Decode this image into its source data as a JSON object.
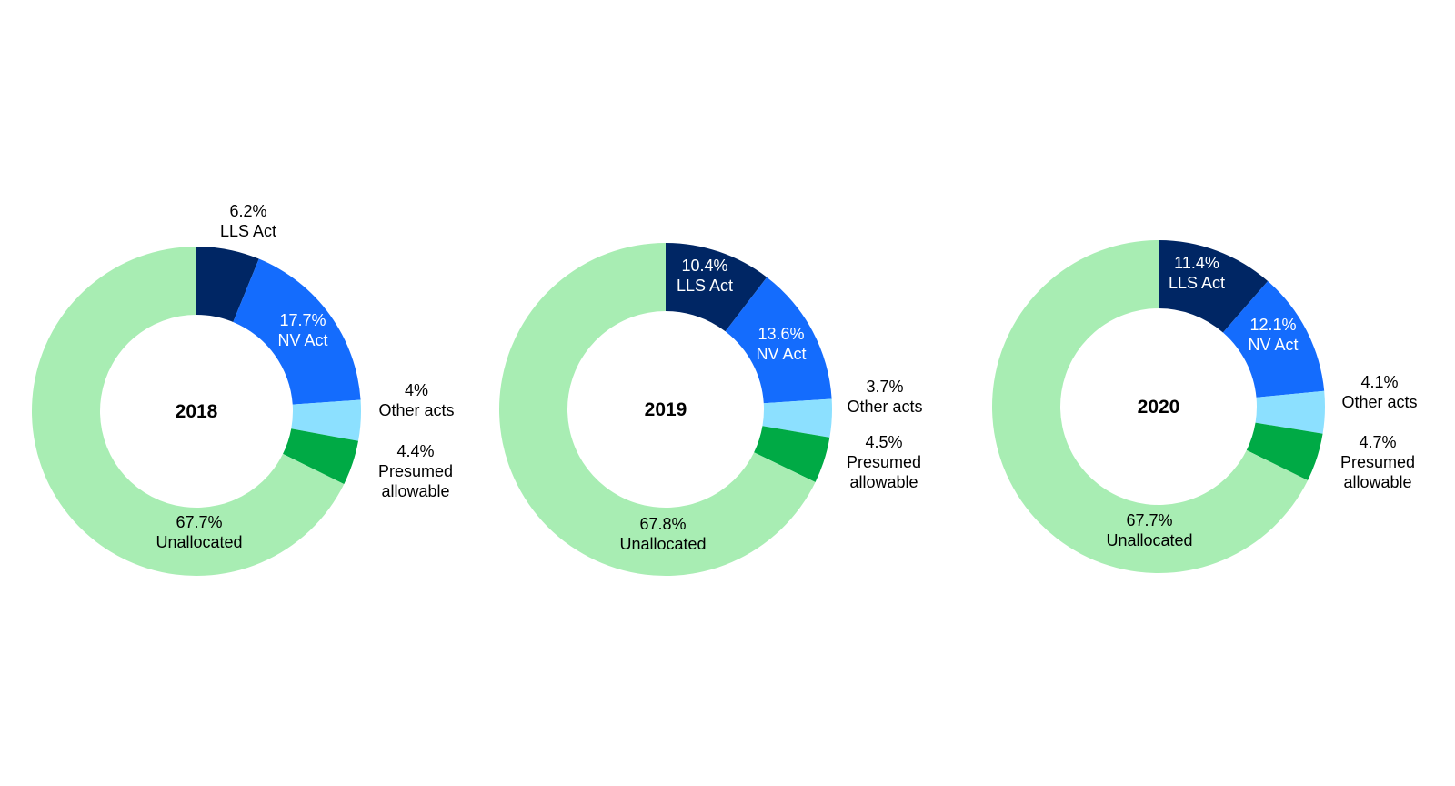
{
  "chart_data": [
    {
      "type": "pie",
      "center_label": "2018",
      "slices": [
        {
          "pct": "6.2%",
          "value": 6.2,
          "label": "LLS Act",
          "color": "#002664"
        },
        {
          "pct": "17.7%",
          "value": 17.7,
          "label": "NV Act",
          "color": "#146cfd"
        },
        {
          "pct": "4%",
          "value": 4.0,
          "label": "Other acts",
          "color": "#8ce0ff"
        },
        {
          "pct": "4.4%",
          "value": 4.4,
          "label": [
            "Presumed",
            "allowable"
          ],
          "color": "#00aa45"
        },
        {
          "pct": "67.7%",
          "value": 67.7,
          "label": "Unallocated",
          "color": "#a8edb3"
        }
      ]
    },
    {
      "type": "pie",
      "center_label": "2019",
      "slices": [
        {
          "pct": "10.4%",
          "value": 10.4,
          "label": "LLS Act",
          "color": "#002664"
        },
        {
          "pct": "13.6%",
          "value": 13.6,
          "label": "NV Act",
          "color": "#146cfd"
        },
        {
          "pct": "3.7%",
          "value": 3.7,
          "label": "Other acts",
          "color": "#8ce0ff"
        },
        {
          "pct": "4.5%",
          "value": 4.5,
          "label": [
            "Presumed",
            "allowable"
          ],
          "color": "#00aa45"
        },
        {
          "pct": "67.8%",
          "value": 67.8,
          "label": "Unallocated",
          "color": "#a8edb3"
        }
      ]
    },
    {
      "type": "pie",
      "center_label": "2020",
      "slices": [
        {
          "pct": "11.4%",
          "value": 11.4,
          "label": "LLS Act",
          "color": "#002664"
        },
        {
          "pct": "12.1%",
          "value": 12.1,
          "label": "NV Act",
          "color": "#146cfd"
        },
        {
          "pct": "4.1%",
          "value": 4.1,
          "label": "Other acts",
          "color": "#8ce0ff"
        },
        {
          "pct": "4.7%",
          "value": 4.7,
          "label": [
            "Presumed",
            "allowable"
          ],
          "color": "#00aa45"
        },
        {
          "pct": "67.7%",
          "value": 67.7,
          "label": "Unallocated",
          "color": "#a8edb3"
        }
      ]
    }
  ]
}
